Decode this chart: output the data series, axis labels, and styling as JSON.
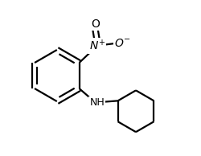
{
  "bg_color": "#ffffff",
  "line_color": "#000000",
  "line_width": 1.6,
  "font_size": 10,
  "fig_width": 2.5,
  "fig_height": 1.94,
  "dpi": 100,
  "xlim": [
    0,
    10
  ],
  "ylim": [
    0,
    7.76
  ]
}
